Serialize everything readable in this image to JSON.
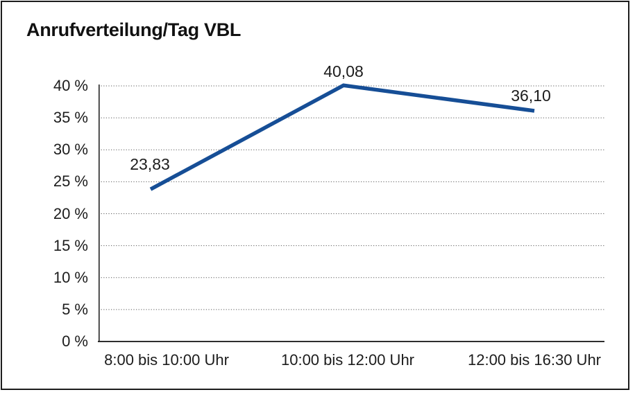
{
  "chart_data": {
    "type": "line",
    "title": "Anrufverteilung/Tag VBL",
    "categories": [
      "8:00 bis 10:00 Uhr",
      "10:00 bis 12:00 Uhr",
      "12:00 bis 16:30 Uhr"
    ],
    "values": [
      23.83,
      40.08,
      36.1
    ],
    "value_labels": [
      "23,83",
      "40,08",
      "36,10"
    ],
    "ytick_labels": [
      "0 %",
      "5 %",
      "10 %",
      "15 %",
      "20 %",
      "25 %",
      "30 %",
      "35 %",
      "40 %"
    ],
    "ytick_values": [
      0,
      5,
      10,
      15,
      20,
      25,
      30,
      35,
      40
    ],
    "ylim": [
      0,
      40
    ],
    "xlabel": "",
    "ylabel": "",
    "grid": "horizontal-dotted",
    "legend": "none",
    "line_color": "#164e96",
    "axis_color": "#2e2e2e",
    "grid_color": "#595959"
  }
}
